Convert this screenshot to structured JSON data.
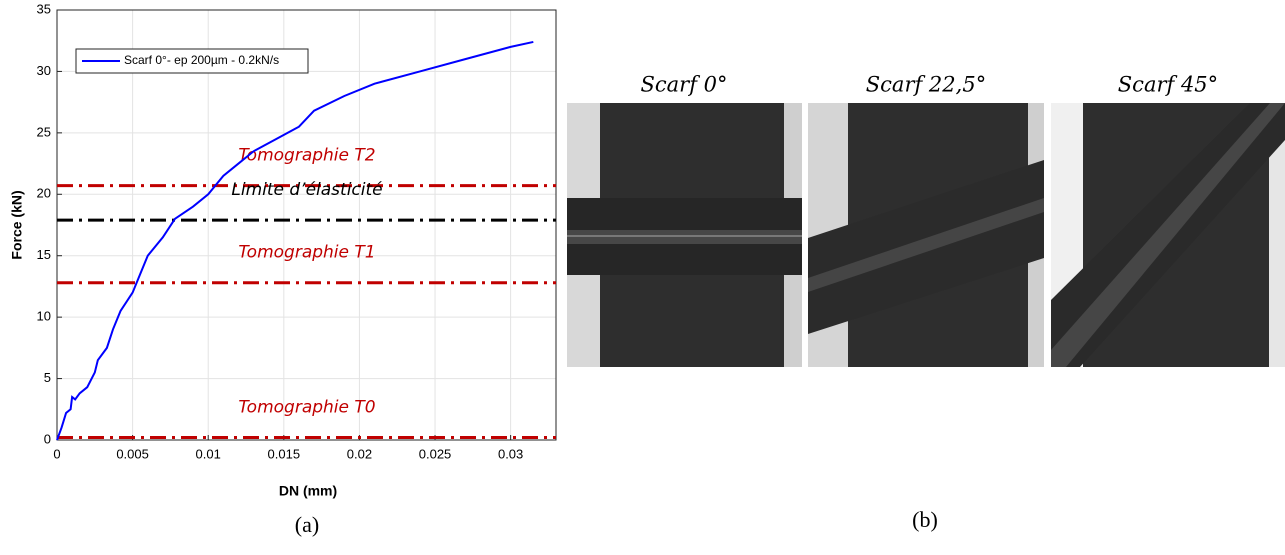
{
  "chart_data": {
    "type": "line",
    "xlabel": "DN (mm)",
    "ylabel": "Force (kN)",
    "x": [
      0,
      0.0003,
      0.0006,
      0.0009,
      0.001,
      0.0012,
      0.0015,
      0.002,
      0.0025,
      0.0027,
      0.0033,
      0.0037,
      0.0042,
      0.005,
      0.0055,
      0.006,
      0.007,
      0.0078,
      0.009,
      0.01,
      0.011,
      0.012,
      0.013,
      0.0145,
      0.016,
      0.017,
      0.019,
      0.021,
      0.024,
      0.027,
      0.03,
      0.0315
    ],
    "series": [
      {
        "name": "Scarf 0°- ep 200µm - 0.2kN/s",
        "color": "#0000ff",
        "values": [
          0,
          1,
          2.2,
          2.5,
          3.5,
          3.3,
          3.8,
          4.3,
          5.5,
          6.5,
          7.5,
          9,
          10.5,
          12,
          13.5,
          15,
          16.5,
          18,
          19,
          20,
          21.5,
          22.5,
          23.5,
          24.5,
          25.5,
          26.8,
          28,
          29,
          30,
          31,
          32,
          32.4
        ]
      }
    ],
    "hlines": [
      {
        "value": 20.7,
        "label": "Tomographie T2",
        "color": "#c00000"
      },
      {
        "value": 17.9,
        "label": "Limite d’élasticité",
        "color": "#000000"
      },
      {
        "value": 12.8,
        "label": "Tomographie T1",
        "color": "#c00000"
      },
      {
        "value": 0.2,
        "label": "Tomographie T0",
        "color": "#c00000"
      }
    ],
    "xlim": [
      0,
      0.033
    ],
    "ylim": [
      0,
      35
    ],
    "xticks": [
      0,
      0.005,
      0.01,
      0.015,
      0.02,
      0.025,
      0.03
    ],
    "yticks": [
      0,
      5,
      10,
      15,
      20,
      25,
      30,
      35
    ],
    "grid": true,
    "legend": "upper left",
    "caption": "(a)"
  },
  "images": {
    "caption": "(b)",
    "titles": [
      "Scarf 0°",
      "Scarf 22,5°",
      "Scarf 45°"
    ]
  }
}
